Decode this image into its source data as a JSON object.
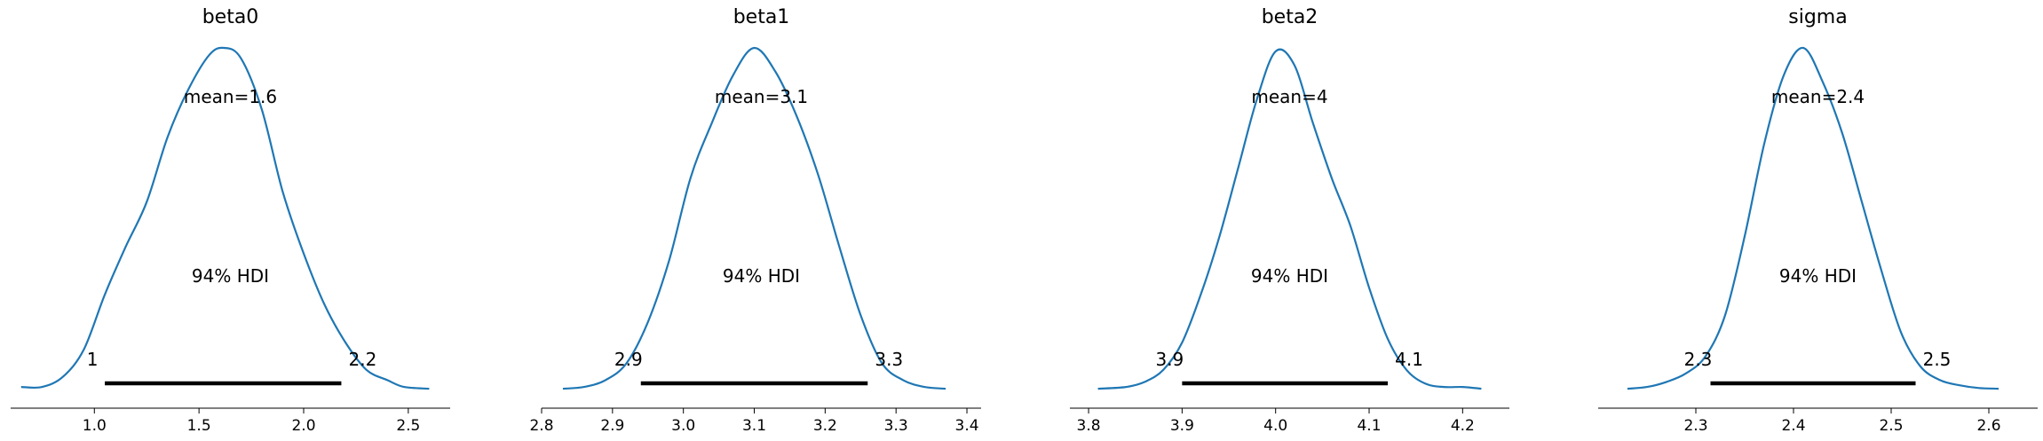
{
  "chart_data": [
    {
      "type": "line",
      "title": "beta0",
      "color": "#1f77b4",
      "xlim": [
        0.6,
        2.7
      ],
      "xticks": [
        1.0,
        1.5,
        2.0,
        2.5
      ],
      "tick_labels": [
        "1.0",
        "1.5",
        "2.0",
        "2.5"
      ],
      "mean_label": "mean=1.6",
      "hdi_label": "94% HDI",
      "hdi": [
        1.05,
        2.18
      ],
      "hdi_low_label": "1",
      "hdi_high_label": "2.2",
      "density": {
        "x": [
          0.65,
          0.75,
          0.85,
          0.95,
          1.05,
          1.15,
          1.25,
          1.35,
          1.45,
          1.55,
          1.62,
          1.7,
          1.8,
          1.9,
          2.0,
          2.1,
          2.2,
          2.3,
          2.4,
          2.48,
          2.6
        ],
        "y": [
          0.01,
          0.01,
          0.04,
          0.12,
          0.28,
          0.42,
          0.55,
          0.74,
          0.88,
          0.98,
          1.0,
          0.97,
          0.82,
          0.58,
          0.4,
          0.25,
          0.14,
          0.06,
          0.03,
          0.01,
          0.005
        ]
      }
    },
    {
      "type": "line",
      "title": "beta1",
      "color": "#1f77b4",
      "xlim": [
        2.8,
        3.42
      ],
      "xticks": [
        2.8,
        2.9,
        3.0,
        3.1,
        3.2,
        3.3,
        3.4
      ],
      "tick_labels": [
        "2.8",
        "2.9",
        "3.0",
        "3.1",
        "3.2",
        "3.3",
        "3.4"
      ],
      "mean_label": "mean=3.1",
      "hdi_label": "94% HDI",
      "hdi": [
        2.94,
        3.26
      ],
      "hdi_low_label": "2.9",
      "hdi_high_label": "3.3",
      "density": {
        "x": [
          2.83,
          2.86,
          2.89,
          2.92,
          2.95,
          2.98,
          3.01,
          3.04,
          3.07,
          3.1,
          3.13,
          3.16,
          3.19,
          3.22,
          3.25,
          3.28,
          3.31,
          3.34,
          3.37
        ],
        "y": [
          0.005,
          0.01,
          0.03,
          0.08,
          0.2,
          0.38,
          0.62,
          0.78,
          0.92,
          1.0,
          0.93,
          0.8,
          0.63,
          0.42,
          0.22,
          0.08,
          0.03,
          0.01,
          0.005
        ]
      }
    },
    {
      "type": "line",
      "title": "beta2",
      "color": "#1f77b4",
      "xlim": [
        3.78,
        4.25
      ],
      "xticks": [
        3.8,
        3.9,
        4.0,
        4.1,
        4.2
      ],
      "tick_labels": [
        "3.8",
        "3.9",
        "4.0",
        "4.1",
        "4.2"
      ],
      "mean_label": "mean=4",
      "hdi_label": "94% HDI",
      "hdi": [
        3.9,
        4.12
      ],
      "hdi_low_label": "3.9",
      "hdi_high_label": "4.1",
      "density": {
        "x": [
          3.81,
          3.84,
          3.86,
          3.88,
          3.9,
          3.92,
          3.94,
          3.96,
          3.98,
          4.0,
          4.02,
          4.04,
          4.06,
          4.08,
          4.1,
          4.12,
          4.14,
          4.16,
          4.18,
          4.2,
          4.22
        ],
        "y": [
          0.005,
          0.01,
          0.025,
          0.06,
          0.14,
          0.28,
          0.45,
          0.65,
          0.85,
          0.99,
          0.95,
          0.78,
          0.62,
          0.48,
          0.3,
          0.15,
          0.06,
          0.02,
          0.01,
          0.01,
          0.005
        ]
      }
    },
    {
      "type": "line",
      "title": "sigma",
      "color": "#1f77b4",
      "xlim": [
        2.2,
        2.65
      ],
      "xticks": [
        2.3,
        2.4,
        2.5,
        2.6
      ],
      "tick_labels": [
        "2.3",
        "2.4",
        "2.5",
        "2.6"
      ],
      "mean_label": "mean=2.4",
      "hdi_label": "94% HDI",
      "hdi": [
        2.315,
        2.525
      ],
      "hdi_low_label": "2.3",
      "hdi_high_label": "2.5",
      "density": {
        "x": [
          2.23,
          2.25,
          2.27,
          2.29,
          2.31,
          2.33,
          2.35,
          2.37,
          2.39,
          2.41,
          2.43,
          2.45,
          2.47,
          2.49,
          2.51,
          2.53,
          2.55,
          2.57,
          2.59,
          2.61
        ],
        "y": [
          0.005,
          0.01,
          0.025,
          0.05,
          0.1,
          0.22,
          0.45,
          0.72,
          0.92,
          1.0,
          0.9,
          0.75,
          0.55,
          0.35,
          0.17,
          0.07,
          0.03,
          0.015,
          0.007,
          0.005
        ]
      }
    }
  ]
}
